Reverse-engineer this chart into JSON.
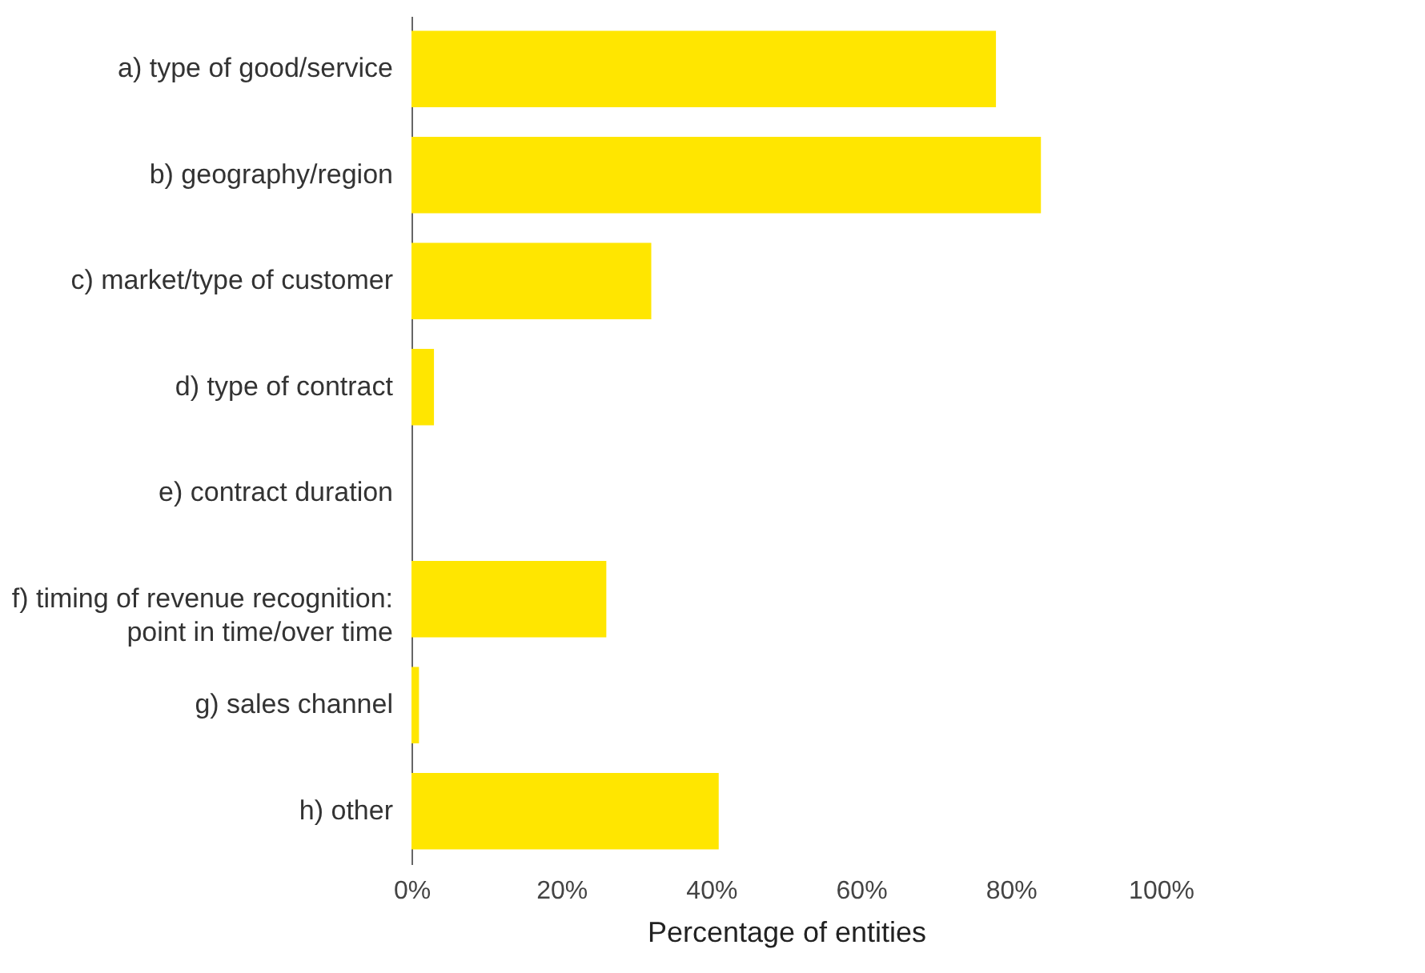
{
  "chart_data": {
    "type": "bar",
    "orientation": "horizontal",
    "xlabel": "Percentage of entities",
    "categories": [
      "a) type of good/service",
      "b) geography/region",
      "c) market/type of customer",
      "d) type of contract",
      "e) contract duration",
      "f) timing of revenue recognition: point in time/over time",
      "g) sales channel",
      "h) other"
    ],
    "values": [
      78,
      84,
      32,
      3,
      0,
      26,
      1,
      41
    ],
    "color": "#ffe600",
    "xlim": [
      0,
      100
    ],
    "xticks": [
      {
        "value": 0,
        "label": "0%"
      },
      {
        "value": 20,
        "label": "20%"
      },
      {
        "value": 40,
        "label": "40%"
      },
      {
        "value": 60,
        "label": "60%"
      },
      {
        "value": 80,
        "label": "80%"
      },
      {
        "value": 100,
        "label": "100%"
      }
    ],
    "grid": false
  }
}
